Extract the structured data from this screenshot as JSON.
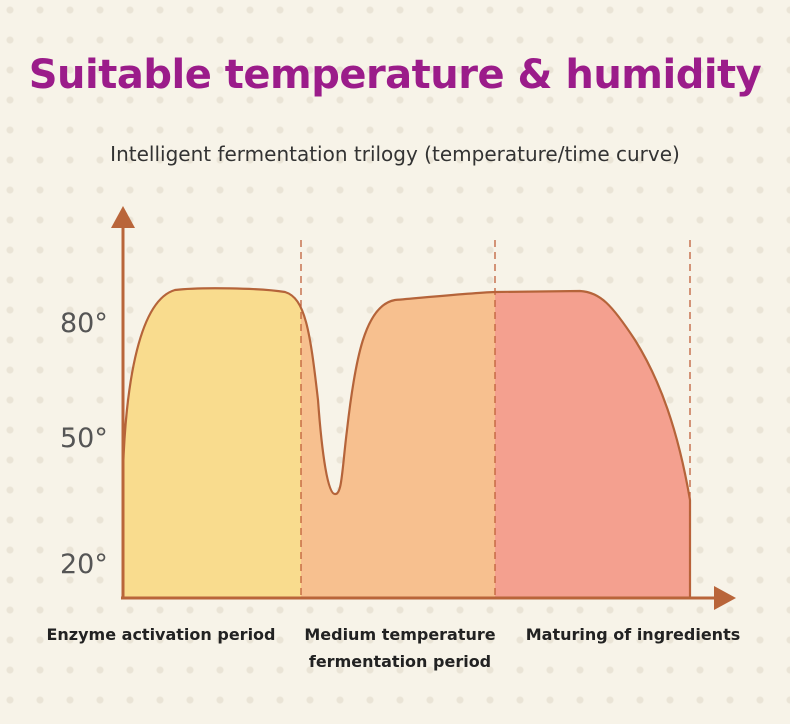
{
  "header": {
    "title": "Suitable temperature & humidity",
    "subtitle": "Intelligent fermentation trilogy (temperature/time curve)"
  },
  "chart_data": {
    "type": "area",
    "y_ticks": [
      {
        "value": 80,
        "label": "80°"
      },
      {
        "value": 50,
        "label": "50°"
      },
      {
        "value": 20,
        "label": "20°"
      }
    ],
    "phases": [
      {
        "label": [
          "Enzyme activation period"
        ],
        "color": "#f9dc8e"
      },
      {
        "label": [
          "Medium temperature",
          "fermentation period"
        ],
        "color": "#f7c08f"
      },
      {
        "label": [
          "Maturing of ingredients"
        ],
        "color": "#f4a08f"
      }
    ],
    "curve_color": "#b5643a",
    "axis_color": "#b9653a",
    "grid": false
  }
}
